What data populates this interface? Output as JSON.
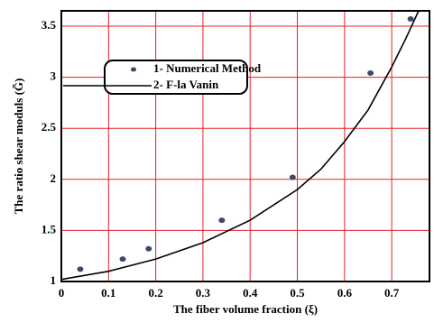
{
  "chart_data": {
    "type": "scatter",
    "xlabel": "The fiber volume fraction (ξ)",
    "ylabel": "The ratio shear moduls (G̃)",
    "xlim": [
      0,
      0.78
    ],
    "ylim": [
      1,
      3.65
    ],
    "xticks": [
      0,
      0.1,
      0.2,
      0.3,
      0.4,
      0.5,
      0.6,
      0.7
    ],
    "yticks": [
      1,
      1.5,
      2,
      2.5,
      3,
      3.5
    ],
    "grid": true,
    "grid_color": "#e8202a",
    "series": [
      {
        "name": "1- Numerical Method",
        "mode": "markers",
        "color": "#3b4a66",
        "x": [
          0.04,
          0.13,
          0.185,
          0.34,
          0.49,
          0.655,
          0.74
        ],
        "values": [
          1.12,
          1.22,
          1.32,
          1.6,
          2.02,
          3.04,
          3.57
        ]
      },
      {
        "name": "2- F-la Vanin",
        "mode": "line",
        "color": "#000000",
        "x": [
          0,
          0.1,
          0.2,
          0.3,
          0.4,
          0.5,
          0.55,
          0.6,
          0.65,
          0.7,
          0.73,
          0.76,
          0.78
        ],
        "values": [
          1.02,
          1.1,
          1.22,
          1.38,
          1.6,
          1.9,
          2.1,
          2.37,
          2.68,
          3.1,
          3.38,
          3.68,
          3.9
        ]
      }
    ]
  }
}
